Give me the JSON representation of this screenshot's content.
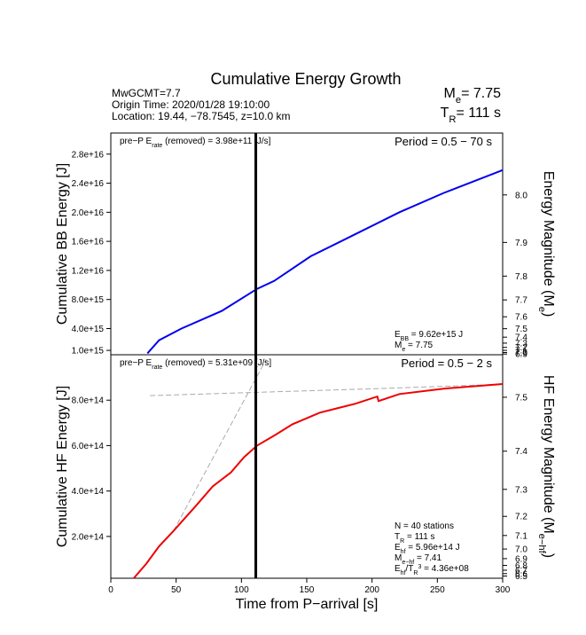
{
  "header": {
    "title": "Cumulative Energy Growth",
    "info": [
      "MwGCMT=7.7",
      "Origin Time: 2020/01/28 19:10:00",
      "Location: 19.44, −78.7545, z=10.0 km"
    ],
    "summary": [
      [
        "M",
        {
          "sub": "e"
        },
        "= 7.75"
      ],
      [
        "T",
        {
          "sub": "R"
        },
        "= 111 s"
      ]
    ]
  },
  "chart_data": [
    {
      "type": "line",
      "ylabel": "Cumulative BB Energy [J]",
      "y2label": [
        "Energy Magnitude (M",
        {
          "sub": "e"
        },
        ")"
      ],
      "note_left": [
        "pre−P E",
        {
          "sub": "rate"
        },
        " (removed) = 3.98e+11 [J/s]"
      ],
      "note_right": "Period = 0.5 − 70 s",
      "stats": [
        [
          "E",
          {
            "sub": "BB"
          },
          " = 9.62e+15 J"
        ],
        [
          "M",
          {
            "sub": "e"
          },
          " = 7.75"
        ]
      ],
      "xlim": [
        0,
        300
      ],
      "ylim": [
        400000000000000,
        30900000000000000
      ],
      "yticks": [
        {
          "value": 1000000000000000.0,
          "label": "1.0e+15"
        },
        {
          "value": 4000000000000000.0,
          "label": "4.0e+15"
        },
        {
          "value": 8000000000000000.0,
          "label": "8.0e+15"
        },
        {
          "value": 1.2e+16,
          "label": "1.2e+16"
        },
        {
          "value": 1.6e+16,
          "label": "1.6e+16"
        },
        {
          "value": 2e+16,
          "label": "2.0e+16"
        },
        {
          "value": 2.4e+16,
          "label": "2.4e+16"
        },
        {
          "value": 2.8e+16,
          "label": "2.8e+16"
        }
      ],
      "y2ticks": [
        {
          "value": 8,
          "label": "8.0"
        },
        7.9,
        7.8,
        7.7,
        7.6,
        7.5,
        7.4,
        7.3,
        7.2,
        7.1,
        {
          "value": 7,
          "label": "7.0"
        },
        6.9
      ],
      "marker_x": 111,
      "series": [
        {
          "color": "#0000ee",
          "dashed": false,
          "x": [
            28,
            37,
            54,
            85,
            112,
            125,
            153,
            187,
            221,
            255,
            300
          ],
          "values": [
            600000000000000,
            2400000000000000,
            4000000000000000,
            6430000000000000,
            9460000000000000,
            10550000000000000,
            13940000000000000,
            16970000000000000,
            20000000000000000,
            22670000000000000,
            25800000000000000
          ]
        }
      ]
    },
    {
      "type": "line",
      "ylabel": "Cumulative HF Energy [J]",
      "y2label": [
        "HF Energy Magnitude (M",
        {
          "sub": "e−hf"
        },
        ")"
      ],
      "xlabel": "Time from P−arrival [s]",
      "note_left": [
        "pre−P E",
        {
          "sub": "rate"
        },
        " (removed) = 5.31e+09 [J/s]"
      ],
      "note_right": "Period = 0.5 − 2 s",
      "stats": [
        "N = 40 stations",
        [
          "T",
          {
            "sub": "R"
          },
          " = 111  s"
        ],
        [
          "E",
          {
            "sub": "hf"
          },
          " = 5.96e+14 J"
        ],
        [
          "M",
          {
            "sub": "e−hf"
          },
          " = 7.41"
        ],
        [
          "E",
          {
            "sub": "hf"
          },
          "/T",
          {
            "sub": "R"
          },
          {
            "sup": "3"
          },
          " =  4.36e+08"
        ]
      ],
      "xlim": [
        0,
        300
      ],
      "xticks": [
        0,
        50,
        100,
        150,
        200,
        250,
        300
      ],
      "ylim": [
        16000000000000,
        1000000000000000
      ],
      "yticks": [
        {
          "value": 200000000000000.0,
          "label": "2.0e+14"
        },
        {
          "value": 400000000000000.0,
          "label": "4.0e+14"
        },
        {
          "value": 600000000000000.0,
          "label": "6.0e+14"
        },
        {
          "value": 800000000000000.0,
          "label": "8.0e+14"
        }
      ],
      "y2ticks": [
        7.5,
        7.4,
        7.3,
        7.2,
        7.1,
        {
          "value": 7,
          "label": "7.0"
        },
        6.9,
        6.8,
        6.7,
        6.6,
        6.5
      ],
      "marker_x": 111,
      "series": [
        {
          "color": "#aaaaaa",
          "dashed": true,
          "x": [
            30,
            200,
            300
          ],
          "values": [
            820000000000000,
            850000000000000,
            870000000000000
          ]
        },
        {
          "color": "#aaaaaa",
          "dashed": true,
          "x": [
            48,
            119
          ],
          "values": [
            224000000000000,
            980000000000000
          ]
        },
        {
          "color": "#ee0000",
          "dashed": false,
          "x": [
            17,
            27,
            37,
            48,
            54,
            65,
            78,
            92,
            102,
            112,
            126,
            139,
            160,
            187,
            204,
            205,
            221,
            255,
            300
          ],
          "values": [
            12000000000000,
            78700000000000,
            157000000000000,
            224000000000000,
            263000000000000,
            334000000000000,
            420000000000000,
            482000000000000,
            549000000000000,
            600000000000000,
            647000000000000,
            694000000000000,
            745000000000000,
            784000000000000,
            816000000000000,
            796000000000000,
            827000000000000,
            851000000000000,
            871000000000000
          ]
        }
      ]
    }
  ]
}
